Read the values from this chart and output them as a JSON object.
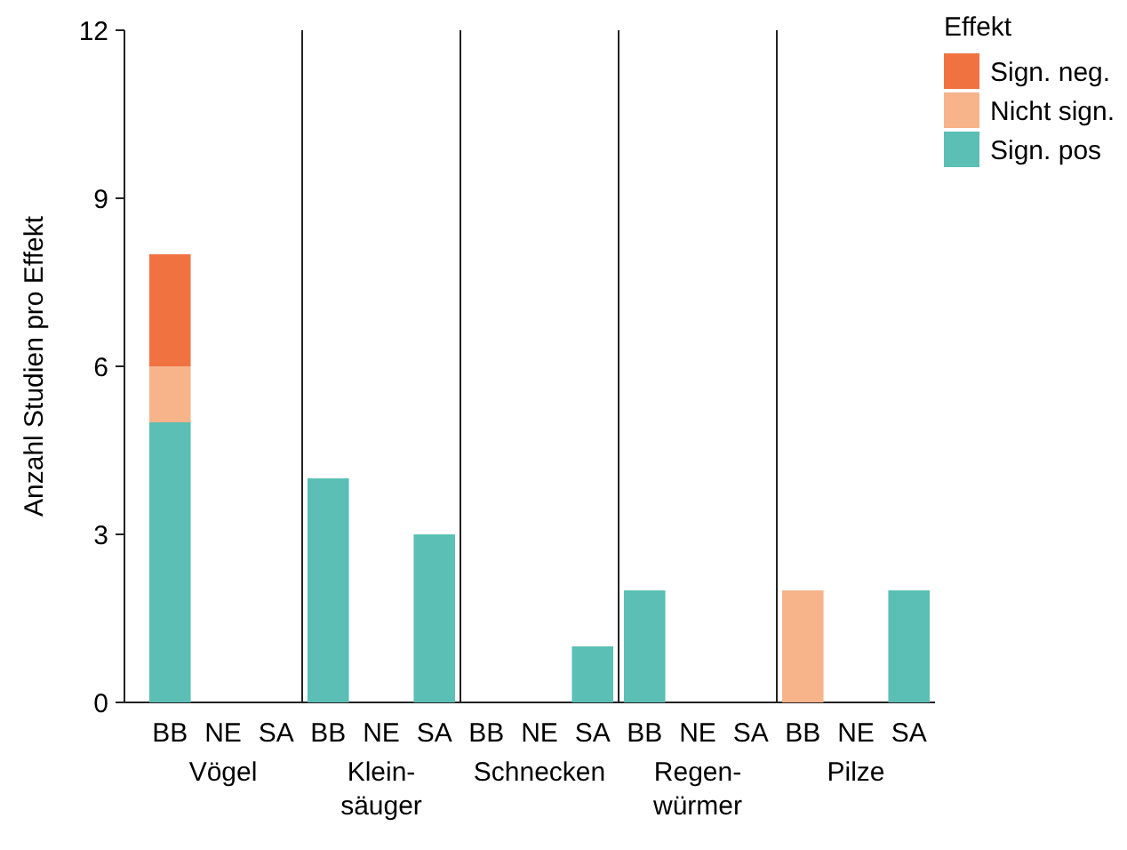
{
  "chart_data": [
    {
      "type": "bar",
      "stacked": true,
      "categories": [
        "BB",
        "NE",
        "SA"
      ],
      "xlabel": "Vögel",
      "ylabel": "Anzahl Studien pro Effekt",
      "ylim": [
        0,
        12
      ],
      "yticks": [
        0,
        3,
        6,
        9,
        12
      ],
      "series": [
        {
          "color": "#5bbfb5",
          "values": [
            5,
            0,
            0
          ]
        },
        {
          "color": "#f7b48a",
          "values": [
            1,
            0,
            0
          ]
        },
        {
          "color": "#f07241",
          "values": [
            2,
            0,
            0
          ]
        }
      ]
    },
    {
      "type": "bar",
      "stacked": true,
      "categories": [
        "BB",
        "NE",
        "SA"
      ],
      "xlabel": "Klein-\nsäuger",
      "ylim": [
        0,
        12
      ],
      "tick_labels": "x",
      "series": [
        {
          "color": "#5bbfb5",
          "values": [
            4,
            0,
            3
          ]
        },
        {
          "color": "#f7b48a",
          "values": [
            0,
            0,
            0
          ]
        },
        {
          "color": "#f07241",
          "values": [
            0,
            0,
            0
          ]
        }
      ]
    },
    {
      "type": "bar",
      "stacked": true,
      "categories": [
        "BB",
        "NE",
        "SA"
      ],
      "xlabel": "Schnecken",
      "ylim": [
        0,
        12
      ],
      "tick_labels": "x",
      "series": [
        {
          "color": "#5bbfb5",
          "values": [
            0,
            0,
            1
          ]
        },
        {
          "color": "#f7b48a",
          "values": [
            0,
            0,
            0
          ]
        },
        {
          "color": "#f07241",
          "values": [
            0,
            0,
            0
          ]
        }
      ]
    },
    {
      "type": "bar",
      "stacked": true,
      "categories": [
        "BB",
        "NE",
        "SA"
      ],
      "xlabel": "Regen-\nwürmer",
      "ylim": [
        0,
        12
      ],
      "tick_labels": "x",
      "series": [
        {
          "color": "#5bbfb5",
          "values": [
            2,
            0,
            0
          ]
        },
        {
          "color": "#f7b48a",
          "values": [
            0,
            0,
            0
          ]
        },
        {
          "color": "#f07241",
          "values": [
            0,
            0,
            0
          ]
        }
      ]
    },
    {
      "type": "bar",
      "stacked": true,
      "categories": [
        "BB",
        "NE",
        "SA"
      ],
      "xlabel": "Pilze",
      "ylim": [
        0,
        12
      ],
      "tick_labels": "x",
      "legend": "right",
      "legend_title": "Effekt",
      "series": [
        {
          "name": "Sign. pos",
          "color": "#5bbfb5",
          "values": [
            0,
            0,
            2
          ]
        },
        {
          "name": "Nicht sign.",
          "color": "#f7b48a",
          "values": [
            2,
            0,
            0
          ]
        },
        {
          "name": "Sign. neg.",
          "color": "#f07241",
          "values": [
            0,
            0,
            0
          ]
        }
      ]
    }
  ]
}
